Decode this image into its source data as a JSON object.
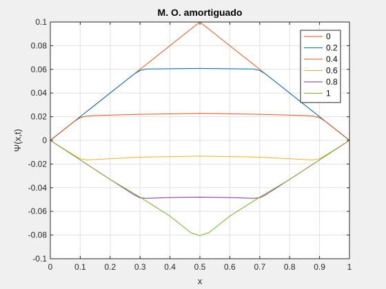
{
  "chart_data": {
    "type": "line",
    "title": "M. O. amortiguado",
    "xlabel": "x",
    "ylabel": "Ψ(x,t)",
    "xlim": [
      0,
      1
    ],
    "ylim": [
      -0.1,
      0.1
    ],
    "x_ticks": [
      0,
      0.1,
      0.2,
      0.3,
      0.4,
      0.5,
      0.6,
      0.7,
      0.8,
      0.9,
      1
    ],
    "x_tick_labels": [
      "0",
      "0.1",
      "0.2",
      "0.3",
      "0.4",
      "0.5",
      "0.6",
      "0.7",
      "0.8",
      "0.9",
      "1"
    ],
    "y_ticks": [
      -0.1,
      -0.08,
      -0.06,
      -0.04,
      -0.02,
      0,
      0.02,
      0.04,
      0.06,
      0.08,
      0.1
    ],
    "y_tick_labels": [
      "-0.1",
      "-0.08",
      "-0.06",
      "-0.04",
      "-0.02",
      "0",
      "0.02",
      "0.04",
      "0.06",
      "0.08",
      "0.1"
    ],
    "grid": true,
    "legend_position": "top-right",
    "series": [
      {
        "name": "0",
        "color": "#d95319",
        "points": [
          [
            0,
            0
          ],
          [
            0.5,
            0.1
          ],
          [
            1,
            0
          ]
        ]
      },
      {
        "name": "0.2",
        "color": "#0072bd",
        "points": [
          [
            0,
            0
          ],
          [
            0.1,
            0.02
          ],
          [
            0.2,
            0.04
          ],
          [
            0.28,
            0.056
          ],
          [
            0.3,
            0.059
          ],
          [
            0.32,
            0.0603
          ],
          [
            0.35,
            0.0604
          ],
          [
            0.5,
            0.0608
          ],
          [
            0.65,
            0.0604
          ],
          [
            0.68,
            0.0603
          ],
          [
            0.7,
            0.059
          ],
          [
            0.72,
            0.056
          ],
          [
            0.8,
            0.04
          ],
          [
            0.9,
            0.02
          ],
          [
            1,
            0
          ]
        ]
      },
      {
        "name": "0.4",
        "color": "#d95319",
        "points": [
          [
            0,
            0
          ],
          [
            0.08,
            0.016
          ],
          [
            0.1,
            0.0192
          ],
          [
            0.12,
            0.0205
          ],
          [
            0.15,
            0.021
          ],
          [
            0.3,
            0.022
          ],
          [
            0.5,
            0.0228
          ],
          [
            0.7,
            0.022
          ],
          [
            0.85,
            0.021
          ],
          [
            0.88,
            0.0205
          ],
          [
            0.9,
            0.0192
          ],
          [
            0.92,
            0.016
          ],
          [
            1,
            0
          ]
        ]
      },
      {
        "name": "0.6",
        "color": "#edb120",
        "points": [
          [
            0,
            0
          ],
          [
            0.05,
            -0.008
          ],
          [
            0.1,
            -0.0155
          ],
          [
            0.12,
            -0.0165
          ],
          [
            0.15,
            -0.0162
          ],
          [
            0.3,
            -0.0142
          ],
          [
            0.5,
            -0.0133
          ],
          [
            0.7,
            -0.0142
          ],
          [
            0.85,
            -0.0162
          ],
          [
            0.88,
            -0.0165
          ],
          [
            0.9,
            -0.0155
          ],
          [
            0.95,
            -0.008
          ],
          [
            1,
            0
          ]
        ]
      },
      {
        "name": "0.8",
        "color": "#7e2f8e",
        "points": [
          [
            0,
            0
          ],
          [
            0.1,
            -0.0165
          ],
          [
            0.2,
            -0.033
          ],
          [
            0.28,
            -0.046
          ],
          [
            0.3,
            -0.0485
          ],
          [
            0.32,
            -0.049
          ],
          [
            0.4,
            -0.0483
          ],
          [
            0.5,
            -0.048
          ],
          [
            0.6,
            -0.0483
          ],
          [
            0.68,
            -0.049
          ],
          [
            0.7,
            -0.0485
          ],
          [
            0.72,
            -0.046
          ],
          [
            0.8,
            -0.033
          ],
          [
            0.9,
            -0.0165
          ],
          [
            1,
            0
          ]
        ]
      },
      {
        "name": "1",
        "color": "#77ac30",
        "points": [
          [
            0,
            0
          ],
          [
            0.1,
            -0.0165
          ],
          [
            0.2,
            -0.033
          ],
          [
            0.3,
            -0.048
          ],
          [
            0.4,
            -0.064
          ],
          [
            0.44,
            -0.072
          ],
          [
            0.47,
            -0.078
          ],
          [
            0.5,
            -0.0805
          ],
          [
            0.53,
            -0.078
          ],
          [
            0.56,
            -0.072
          ],
          [
            0.6,
            -0.064
          ],
          [
            0.7,
            -0.048
          ],
          [
            0.8,
            -0.033
          ],
          [
            0.9,
            -0.0165
          ],
          [
            1,
            0
          ]
        ]
      }
    ]
  }
}
